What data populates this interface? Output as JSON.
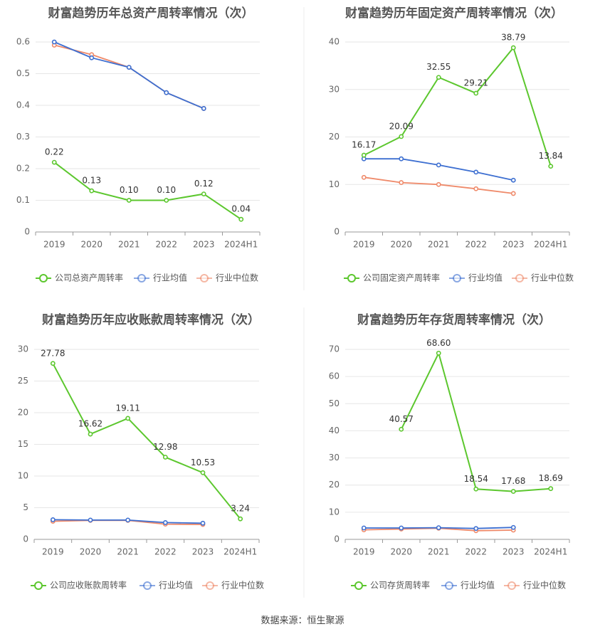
{
  "source": "数据来源：恒生聚源",
  "colors": {
    "company": "#5cc72e",
    "avg": "#3d6fd1",
    "median": "#ef8a6a",
    "grid": "#e6e6e6",
    "axis": "#999999"
  },
  "chart_data": [
    {
      "type": "line",
      "title": "财富趋势历年总资产周转率情况（次）",
      "categories": [
        "2019",
        "2020",
        "2021",
        "2022",
        "2023",
        "2024H1"
      ],
      "ylim": [
        0,
        0.6
      ],
      "yticks": [
        "0",
        "0.1",
        "0.2",
        "0.3",
        "0.4",
        "0.5",
        "0.6"
      ],
      "grid": true,
      "legend_position": "bottom",
      "series": [
        {
          "name": "公司总资产周转率",
          "role": "company",
          "values": [
            0.22,
            0.13,
            0.1,
            0.1,
            0.12,
            0.04
          ],
          "labels": [
            "0.22",
            "0.13",
            "0.10",
            "0.10",
            "0.12",
            "0.04"
          ]
        },
        {
          "name": "行业均值",
          "role": "avg",
          "values": [
            0.6,
            0.55,
            0.52,
            0.44,
            0.39,
            null
          ]
        },
        {
          "name": "行业中位数",
          "role": "median",
          "values": [
            0.59,
            0.56,
            0.52,
            0.44,
            0.39,
            null
          ]
        }
      ]
    },
    {
      "type": "line",
      "title": "财富趋势历年固定资产周转率情况（次）",
      "categories": [
        "2019",
        "2020",
        "2021",
        "2022",
        "2023",
        "2024H1"
      ],
      "ylim": [
        0,
        40
      ],
      "yticks": [
        "0",
        "10",
        "20",
        "30",
        "40"
      ],
      "grid": true,
      "legend_position": "bottom",
      "series": [
        {
          "name": "公司固定资产周转率",
          "role": "company",
          "values": [
            16.17,
            20.09,
            32.55,
            29.21,
            38.79,
            13.84
          ],
          "labels": [
            "16.17",
            "20.09",
            "32.55",
            "29.21",
            "38.79",
            "13.84"
          ]
        },
        {
          "name": "行业均值",
          "role": "avg",
          "values": [
            15.4,
            15.4,
            14.1,
            12.6,
            10.9,
            null
          ]
        },
        {
          "name": "行业中位数",
          "role": "median",
          "values": [
            11.5,
            10.4,
            10.0,
            9.1,
            8.1,
            null
          ]
        }
      ]
    },
    {
      "type": "line",
      "title": "财富趋势历年应收账款周转率情况（次）",
      "categories": [
        "2019",
        "2020",
        "2021",
        "2022",
        "2023",
        "2024H1"
      ],
      "ylim": [
        0,
        30
      ],
      "yticks": [
        "0",
        "5",
        "10",
        "15",
        "20",
        "25",
        "30"
      ],
      "grid": true,
      "legend_position": "bottom",
      "series": [
        {
          "name": "公司应收账款周转率",
          "role": "company",
          "values": [
            27.78,
            16.62,
            19.11,
            12.98,
            10.53,
            3.24
          ],
          "labels": [
            "27.78",
            "16.62",
            "19.11",
            "12.98",
            "10.53",
            "3.24"
          ]
        },
        {
          "name": "行业均值",
          "role": "avg",
          "values": [
            3.1,
            3.05,
            3.05,
            2.65,
            2.55,
            null
          ]
        },
        {
          "name": "行业中位数",
          "role": "median",
          "values": [
            2.85,
            3.0,
            3.0,
            2.4,
            2.35,
            null
          ]
        }
      ]
    },
    {
      "type": "line",
      "title": "财富趋势历年存货周转率情况（次）",
      "categories": [
        "2019",
        "2020",
        "2021",
        "2022",
        "2023",
        "2024H1"
      ],
      "ylim": [
        0,
        70
      ],
      "yticks": [
        "0",
        "10",
        "20",
        "30",
        "40",
        "50",
        "60",
        "70"
      ],
      "grid": true,
      "legend_position": "bottom",
      "series": [
        {
          "name": "公司存货周转率",
          "role": "company",
          "values": [
            null,
            40.57,
            68.6,
            18.54,
            17.68,
            18.69
          ],
          "labels": [
            null,
            "40.57",
            "68.60",
            "18.54",
            "17.68",
            "18.69"
          ]
        },
        {
          "name": "行业均值",
          "role": "avg",
          "values": [
            4.2,
            4.2,
            4.3,
            4.0,
            4.4,
            null
          ]
        },
        {
          "name": "行业中位数",
          "role": "median",
          "values": [
            3.5,
            3.8,
            4.1,
            3.2,
            3.4,
            null
          ]
        }
      ]
    }
  ]
}
